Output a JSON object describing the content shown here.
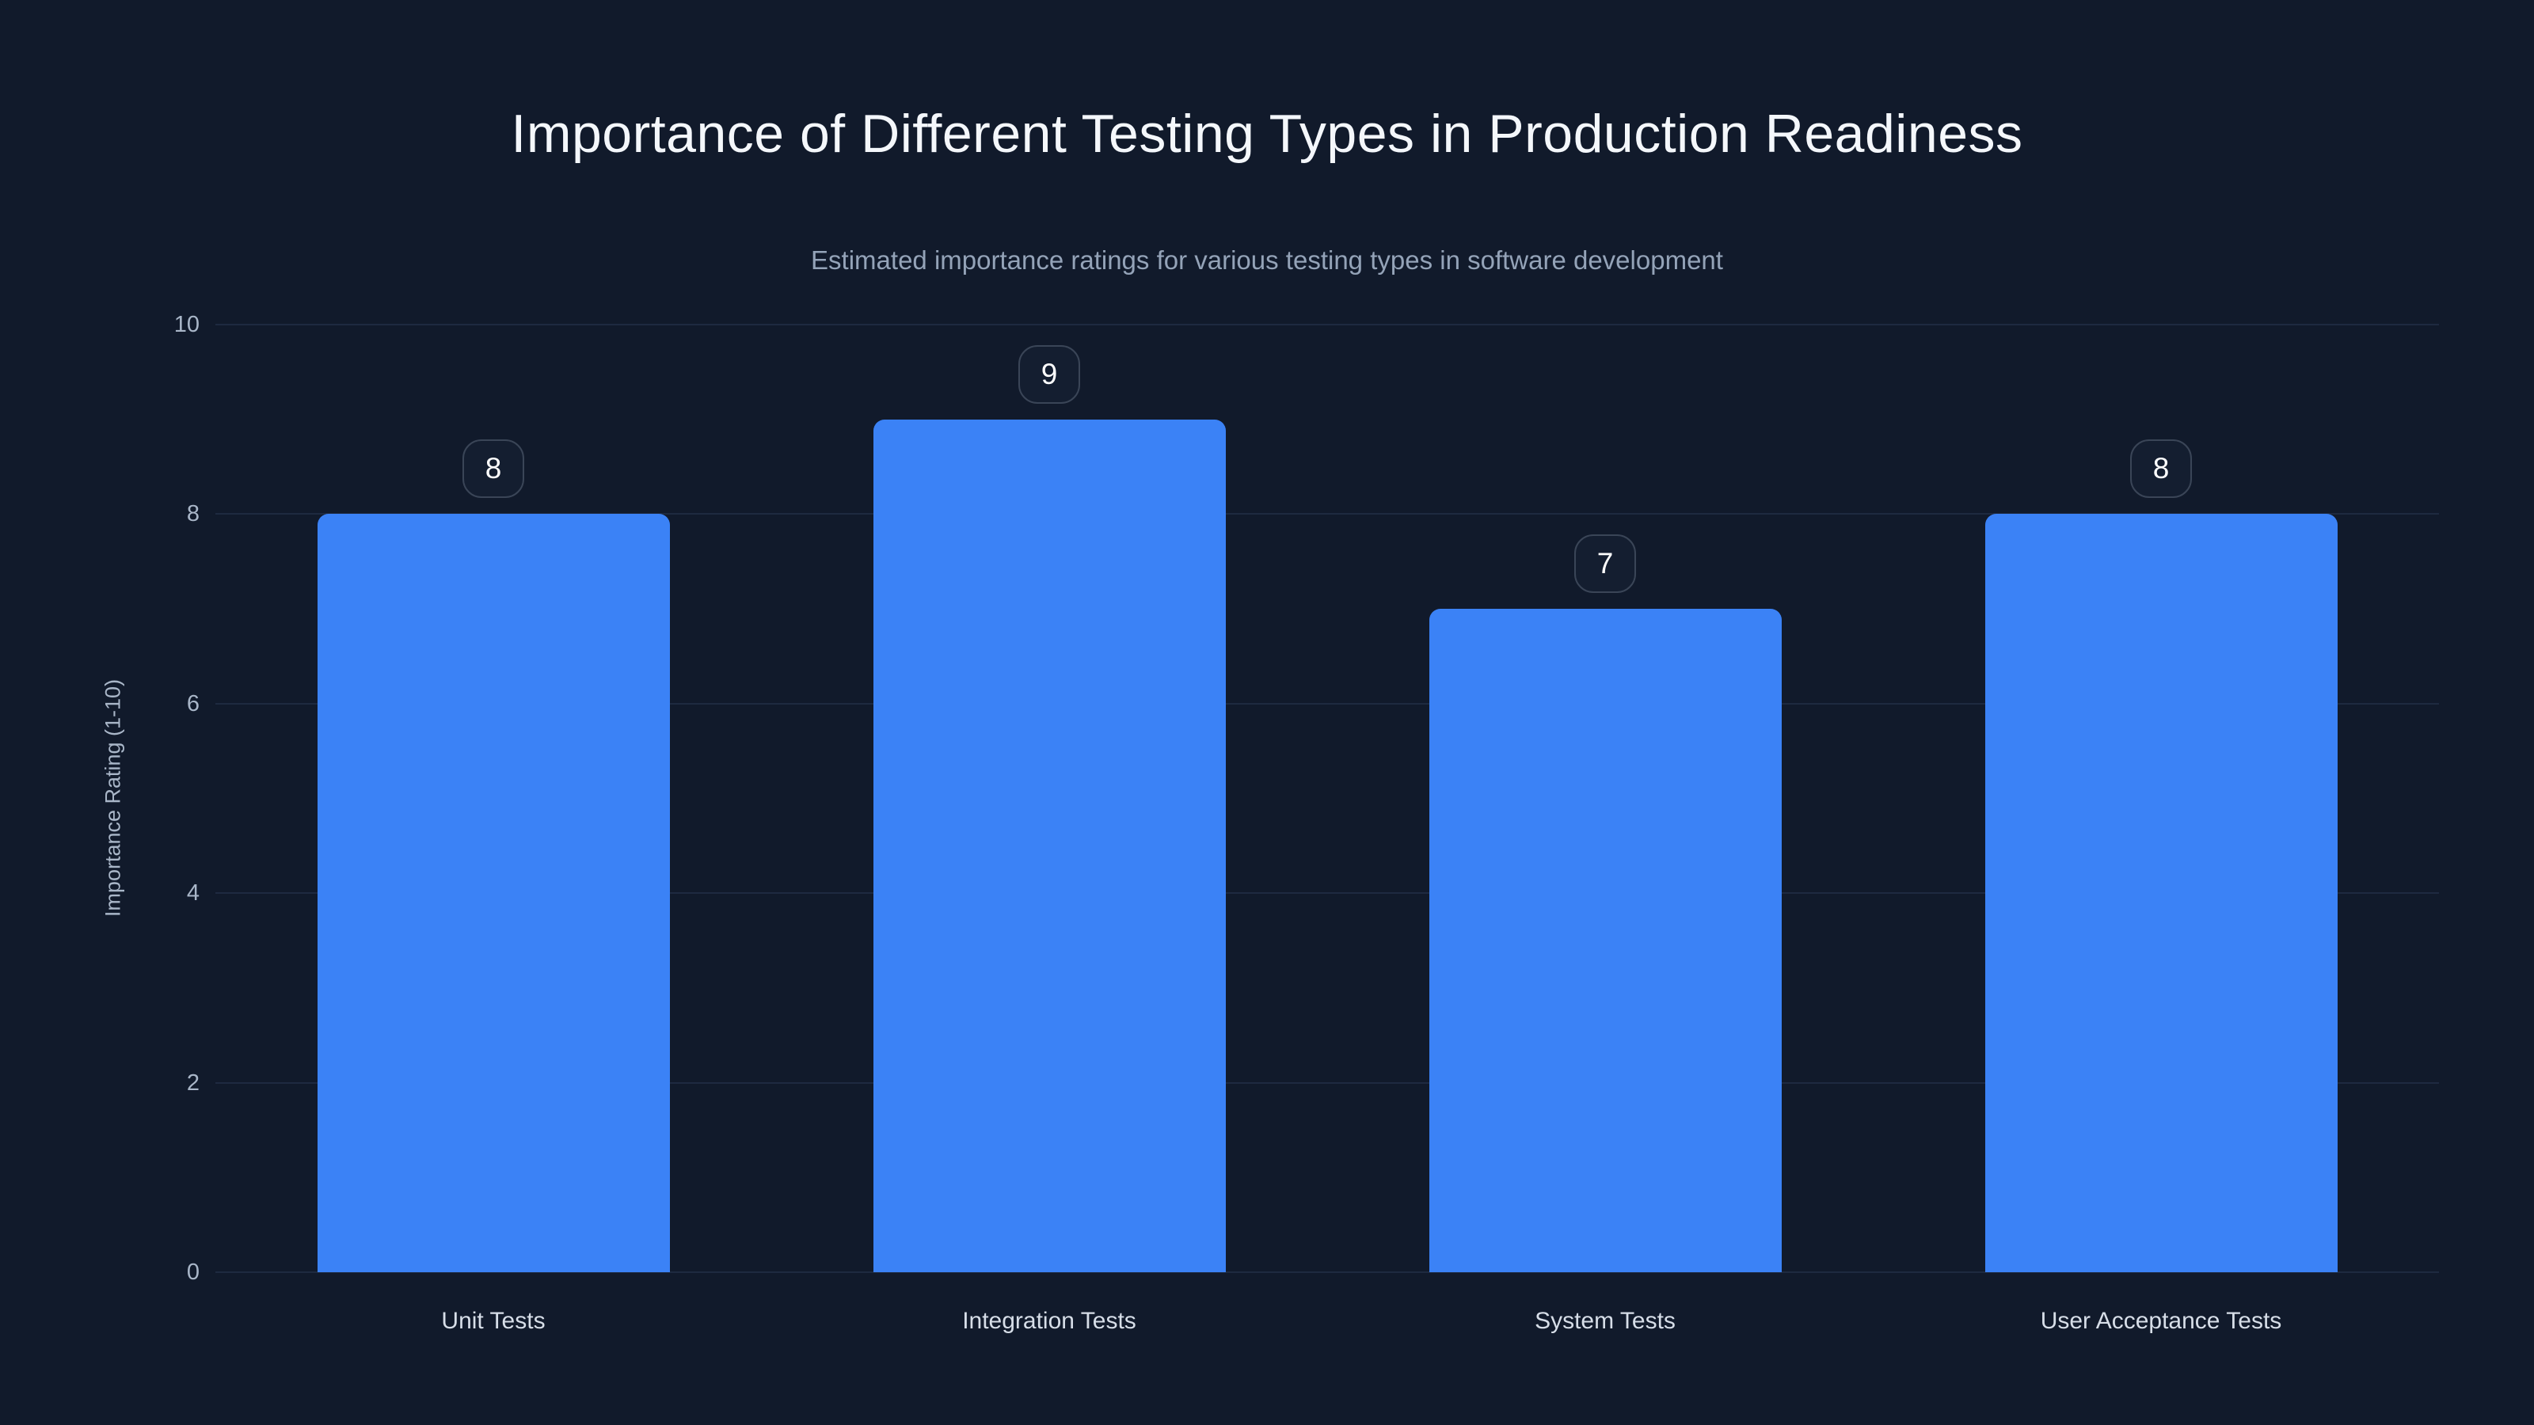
{
  "chart_data": {
    "type": "bar",
    "title": "Importance of Different Testing Types in Production Readiness",
    "subtitle": "Estimated importance ratings for various testing types in software development",
    "xlabel": "",
    "ylabel": "Importance Rating (1-10)",
    "categories": [
      "Unit Tests",
      "Integration Tests",
      "System Tests",
      "User Acceptance Tests"
    ],
    "values": [
      8,
      9,
      7,
      8
    ],
    "value_labels": [
      "8",
      "9",
      "7",
      "8"
    ],
    "ylim": [
      0,
      10
    ],
    "yticks": [
      0,
      2,
      4,
      6,
      8,
      10
    ],
    "grid": true,
    "legend": false,
    "colors": {
      "background": "#111a2b",
      "bar": "#3b82f6",
      "gridline": "#1e2a40",
      "title_text": "#f4f7fb",
      "subtitle_text": "#94a3b8",
      "tick_text": "#a9b6c8",
      "category_text": "#d7dee8",
      "badge_border": "#3a4557",
      "badge_background": "#141e30",
      "badge_text": "#ffffff"
    }
  }
}
